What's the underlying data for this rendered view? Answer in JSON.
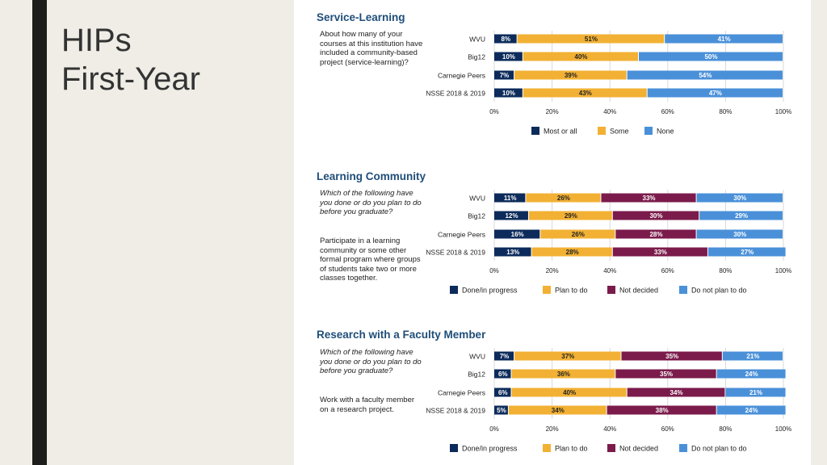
{
  "slide": {
    "title_line1": "HIPs",
    "title_line2": "First-Year"
  },
  "colors": {
    "navy": "#0c2b5b",
    "orange": "#f2b134",
    "maroon": "#7b1b4b",
    "blue": "#4a90d9",
    "section_title": "#1f4e79"
  },
  "chart_data": [
    {
      "type": "bar",
      "orientation": "horizontal",
      "stacked": true,
      "title": "Service-Learning",
      "question": [
        "About how many of your courses at this institution have included a community-based project (service-learning)?"
      ],
      "question_italic": false,
      "categories": [
        "WVU",
        "Big12",
        "Carnegie Peers",
        "NSSE 2018 & 2019"
      ],
      "series": [
        {
          "name": "Most or all",
          "color": "#0c2b5b",
          "values": [
            8,
            10,
            7,
            10
          ]
        },
        {
          "name": "Some",
          "color": "#f2b134",
          "values": [
            51,
            40,
            39,
            43
          ]
        },
        {
          "name": "None",
          "color": "#4a90d9",
          "values": [
            41,
            50,
            54,
            47
          ]
        }
      ],
      "xticks": [
        "0%",
        "20%",
        "40%",
        "60%",
        "80%",
        "100%"
      ],
      "xlim": [
        0,
        100
      ]
    },
    {
      "type": "bar",
      "orientation": "horizontal",
      "stacked": true,
      "title": "Learning Community",
      "question": [
        "Which of the following have you done or do you plan to do before you graduate?",
        "Participate in a learning community or some other formal program where groups of students take two or more classes together."
      ],
      "question_italic": true,
      "categories": [
        "WVU",
        "Big12",
        "Carnegie Peers",
        "NSSE 2018 & 2019"
      ],
      "series": [
        {
          "name": "Done/in progress",
          "color": "#0c2b5b",
          "values": [
            11,
            12,
            16,
            13
          ]
        },
        {
          "name": "Plan to do",
          "color": "#f2b134",
          "values": [
            26,
            29,
            26,
            28
          ]
        },
        {
          "name": "Not decided",
          "color": "#7b1b4b",
          "values": [
            33,
            30,
            28,
            33
          ]
        },
        {
          "name": "Do not plan to do",
          "color": "#4a90d9",
          "values": [
            30,
            29,
            30,
            27
          ]
        }
      ],
      "xticks": [
        "0%",
        "20%",
        "40%",
        "60%",
        "80%",
        "100%"
      ],
      "xlim": [
        0,
        100
      ]
    },
    {
      "type": "bar",
      "orientation": "horizontal",
      "stacked": true,
      "title": "Research with a Faculty Member",
      "question": [
        "Which of the following have you done or do you plan to do before you graduate?",
        "Work with a faculty member on a research project."
      ],
      "question_italic": true,
      "categories": [
        "WVU",
        "Big12",
        "Carnegie Peers",
        "NSSE 2018 & 2019"
      ],
      "series": [
        {
          "name": "Done/in progress",
          "color": "#0c2b5b",
          "values": [
            7,
            6,
            6,
            5
          ]
        },
        {
          "name": "Plan to do",
          "color": "#f2b134",
          "values": [
            37,
            36,
            40,
            34
          ]
        },
        {
          "name": "Not decided",
          "color": "#7b1b4b",
          "values": [
            35,
            35,
            34,
            38
          ]
        },
        {
          "name": "Do not plan to do",
          "color": "#4a90d9",
          "values": [
            21,
            24,
            21,
            24
          ]
        }
      ],
      "xticks": [
        "0%",
        "20%",
        "40%",
        "60%",
        "80%",
        "100%"
      ],
      "xlim": [
        0,
        100
      ]
    }
  ]
}
